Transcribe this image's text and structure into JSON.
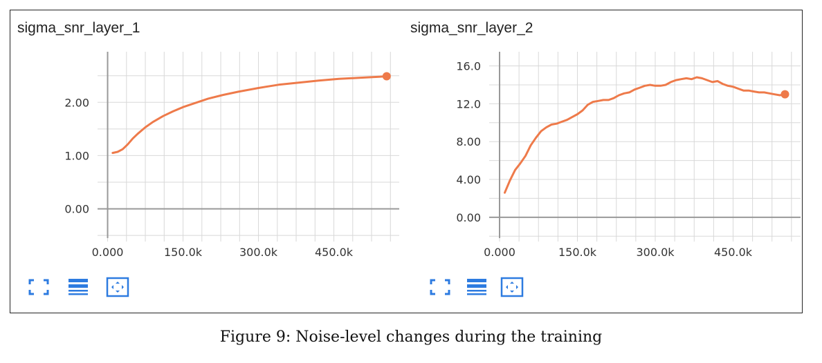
{
  "figure": {
    "caption": "Figure 9: Noise-level changes during the training"
  },
  "colors": {
    "series": "#ee7a4a",
    "grid": "#d8d8d8",
    "axis": "#999999",
    "icon": "#2d7be0"
  },
  "toolbar": {
    "icons": [
      "fullscreen-icon",
      "list-icon",
      "fit-domain-icon"
    ]
  },
  "chart_data": [
    {
      "type": "line",
      "title": "sigma_snr_layer_1",
      "xlabel": "",
      "ylabel": "",
      "xlim": [
        -20000,
        580000
      ],
      "ylim": [
        -0.55,
        2.95
      ],
      "xticks": [
        0,
        150000,
        300000,
        450000
      ],
      "xtick_labels": [
        "0.000",
        "150.0k",
        "300.0k",
        "450.0k"
      ],
      "yticks": [
        0,
        1,
        2
      ],
      "ytick_labels": [
        "0.00",
        "1.00",
        "2.00"
      ],
      "grid": true,
      "series": [
        {
          "x": [
            10000,
            20000,
            30000,
            40000,
            50000,
            60000,
            75000,
            90000,
            110000,
            130000,
            150000,
            175000,
            200000,
            230000,
            260000,
            300000,
            340000,
            380000,
            420000,
            460000,
            500000,
            540000,
            555000
          ],
          "y": [
            1.05,
            1.07,
            1.12,
            1.21,
            1.32,
            1.41,
            1.53,
            1.63,
            1.74,
            1.83,
            1.91,
            1.99,
            2.07,
            2.14,
            2.2,
            2.27,
            2.33,
            2.37,
            2.41,
            2.44,
            2.46,
            2.48,
            2.49
          ]
        }
      ]
    },
    {
      "type": "line",
      "title": "sigma_snr_layer_2",
      "xlabel": "",
      "ylabel": "",
      "xlim": [
        -20000,
        580000
      ],
      "ylim": [
        -2.2,
        17.5
      ],
      "xticks": [
        0,
        150000,
        300000,
        450000
      ],
      "xtick_labels": [
        "0.000",
        "150.0k",
        "300.0k",
        "450.0k"
      ],
      "yticks": [
        0,
        4,
        8,
        12,
        16
      ],
      "ytick_labels": [
        "0.00",
        "4.00",
        "8.00",
        "12.0",
        "16.0"
      ],
      "grid": true,
      "series": [
        {
          "x": [
            10000,
            20000,
            30000,
            40000,
            50000,
            60000,
            70000,
            80000,
            90000,
            100000,
            110000,
            120000,
            130000,
            140000,
            150000,
            160000,
            170000,
            180000,
            190000,
            200000,
            210000,
            220000,
            230000,
            240000,
            250000,
            260000,
            270000,
            280000,
            290000,
            300000,
            310000,
            320000,
            330000,
            340000,
            350000,
            360000,
            370000,
            380000,
            390000,
            400000,
            410000,
            420000,
            430000,
            440000,
            450000,
            460000,
            470000,
            480000,
            490000,
            500000,
            510000,
            520000,
            530000,
            540000,
            550000
          ],
          "y": [
            2.6,
            3.9,
            5.0,
            5.7,
            6.5,
            7.6,
            8.4,
            9.1,
            9.5,
            9.8,
            9.9,
            10.1,
            10.3,
            10.6,
            10.9,
            11.3,
            11.9,
            12.2,
            12.3,
            12.4,
            12.4,
            12.6,
            12.9,
            13.1,
            13.2,
            13.5,
            13.7,
            13.9,
            14.0,
            13.9,
            13.9,
            14.0,
            14.3,
            14.5,
            14.6,
            14.7,
            14.6,
            14.8,
            14.7,
            14.5,
            14.3,
            14.4,
            14.1,
            13.9,
            13.8,
            13.6,
            13.4,
            13.4,
            13.3,
            13.2,
            13.2,
            13.1,
            13.0,
            12.9,
            13.0
          ]
        }
      ]
    }
  ]
}
